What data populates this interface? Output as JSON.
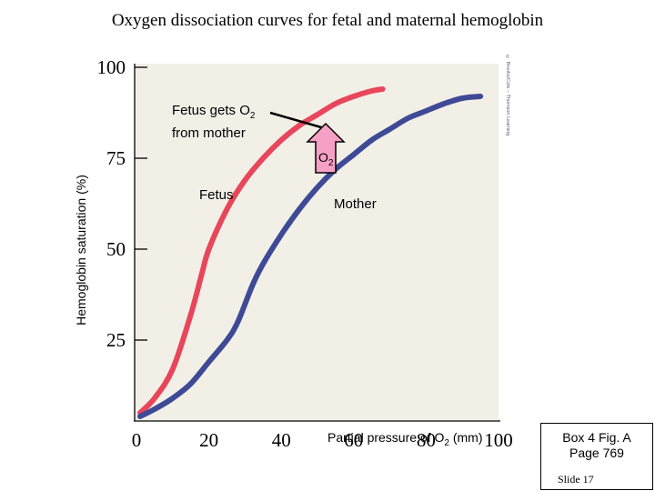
{
  "title": "Oxygen dissociation curves for fetal and maternal hemoglobin",
  "chart_data": {
    "type": "line",
    "title": "Oxygen dissociation curves for fetal and maternal hemoglobin",
    "xlabel": "Partial pressure of O2 (mm)",
    "ylabel": "Hemoglobin saturation (%)",
    "xlim": [
      0,
      100
    ],
    "ylim": [
      3,
      101
    ],
    "x_ticks": [
      "0",
      "20",
      "40",
      "60",
      "80",
      "100"
    ],
    "y_ticks": [
      "100",
      "75",
      "50",
      "25"
    ],
    "grid": false,
    "series": [
      {
        "name": "Fetus",
        "color": "#e8465a",
        "points": [
          [
            1,
            5
          ],
          [
            5,
            9
          ],
          [
            10,
            17
          ],
          [
            15,
            32
          ],
          [
            18,
            43
          ],
          [
            20,
            50
          ],
          [
            25,
            61
          ],
          [
            30,
            69
          ],
          [
            35,
            75
          ],
          [
            40,
            80
          ],
          [
            45,
            84
          ],
          [
            50,
            87
          ],
          [
            55,
            90
          ],
          [
            60,
            92
          ],
          [
            65,
            93.5
          ],
          [
            68,
            94
          ]
        ]
      },
      {
        "name": "Mother",
        "color": "#3f4a96",
        "points": [
          [
            1,
            4
          ],
          [
            5,
            6
          ],
          [
            10,
            9
          ],
          [
            15,
            13
          ],
          [
            20,
            19
          ],
          [
            25,
            25
          ],
          [
            28,
            30
          ],
          [
            32,
            40
          ],
          [
            35,
            46
          ],
          [
            40,
            54
          ],
          [
            45,
            61
          ],
          [
            50,
            67
          ],
          [
            55,
            72
          ],
          [
            60,
            76
          ],
          [
            65,
            80
          ],
          [
            70,
            83
          ],
          [
            75,
            86
          ],
          [
            80,
            88
          ],
          [
            85,
            90
          ],
          [
            90,
            91.5
          ],
          [
            95,
            92
          ]
        ]
      }
    ],
    "annotations": {
      "fetus_label": "Fetus",
      "mother_label": "Mother",
      "callout_line1": "Fetus gets O",
      "callout_line2": "from mother",
      "arrow_label": "O",
      "subscript": "2"
    }
  },
  "xlabel_main": "Partial pressure of O",
  "xlabel_sub": "2",
  "xlabel_unit": " (mm)",
  "box": {
    "line1": "Box 4 Fig. A",
    "line2": "Page 769",
    "slide": "Slide 17"
  },
  "credit": "© Brooks/Cole – Thomson Learning",
  "colors": {
    "fetus": "#e8465a",
    "mother": "#3f4a96",
    "arrow": "#f6a0c5",
    "plot_bg": "#f2efe7"
  }
}
